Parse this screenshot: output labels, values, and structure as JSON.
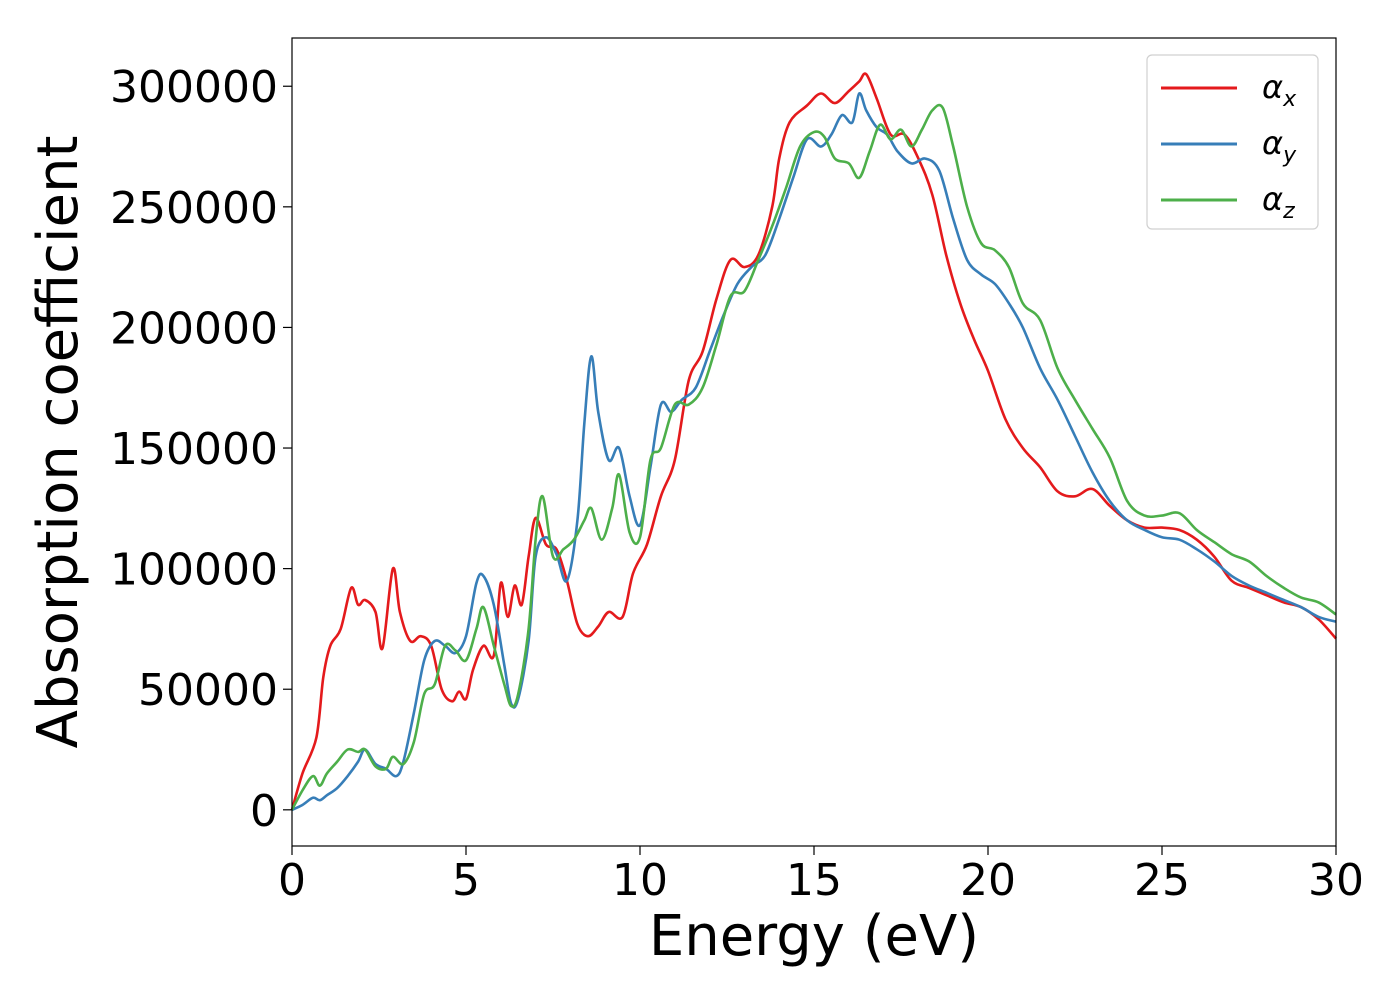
{
  "chart_data": {
    "type": "line",
    "title": "",
    "xlabel": "Energy (eV)",
    "ylabel": "Absorption coefficient",
    "xlim": [
      0,
      30
    ],
    "ylim": [
      -15000,
      320000
    ],
    "xticks": [
      "0",
      "5",
      "10",
      "15",
      "20",
      "25",
      "30"
    ],
    "yticks": [
      "0",
      "50000",
      "100000",
      "150000",
      "200000",
      "250000",
      "300000"
    ],
    "grid": false,
    "legend_position": "top-right",
    "series": [
      {
        "name": "αx",
        "symbol": "α",
        "subscript": "x",
        "color": "#e41a1c",
        "x": [
          0,
          0.3,
          0.7,
          0.9,
          1.1,
          1.4,
          1.7,
          1.9,
          2.1,
          2.4,
          2.6,
          2.9,
          3.1,
          3.4,
          3.7,
          4.0,
          4.3,
          4.6,
          4.8,
          5.0,
          5.2,
          5.5,
          5.8,
          6.0,
          6.2,
          6.4,
          6.6,
          6.8,
          7.0,
          7.3,
          7.6,
          7.9,
          8.2,
          8.5,
          8.8,
          9.1,
          9.5,
          9.8,
          10.2,
          10.6,
          11.0,
          11.4,
          11.8,
          12.2,
          12.6,
          13.0,
          13.4,
          13.8,
          14.0,
          14.3,
          14.8,
          15.2,
          15.6,
          16.0,
          16.3,
          16.5,
          16.8,
          17.2,
          17.6,
          18.0,
          18.4,
          18.8,
          19.2,
          19.6,
          20.0,
          20.5,
          21.0,
          21.5,
          22.0,
          22.5,
          23.0,
          23.5,
          24.0,
          24.5,
          25.0,
          25.5,
          26.0,
          26.5,
          27.0,
          27.5,
          28.0,
          28.5,
          29.0,
          29.5,
          30.0
        ],
        "y": [
          0,
          15000,
          30000,
          55000,
          68000,
          75000,
          92000,
          85000,
          87000,
          82000,
          67000,
          100000,
          82000,
          70000,
          72000,
          68000,
          50000,
          45000,
          49000,
          46000,
          58000,
          68000,
          64000,
          94000,
          80000,
          93000,
          85000,
          105000,
          121000,
          110000,
          108000,
          95000,
          77000,
          72000,
          76000,
          82000,
          80000,
          98000,
          110000,
          130000,
          145000,
          178000,
          190000,
          212000,
          228000,
          225000,
          230000,
          250000,
          270000,
          285000,
          292000,
          297000,
          293000,
          298000,
          302000,
          305000,
          295000,
          280000,
          280000,
          270000,
          255000,
          230000,
          210000,
          195000,
          182000,
          162000,
          150000,
          142000,
          132000,
          130000,
          133000,
          126000,
          120000,
          117000,
          117000,
          116000,
          112000,
          105000,
          95000,
          92000,
          89000,
          86000,
          84000,
          79000,
          71000
        ]
      },
      {
        "name": "αy",
        "symbol": "α",
        "subscript": "y",
        "color": "#377eb8",
        "x": [
          0,
          0.3,
          0.6,
          0.8,
          1.0,
          1.3,
          1.6,
          1.9,
          2.1,
          2.4,
          2.7,
          3.0,
          3.2,
          3.5,
          3.8,
          4.1,
          4.4,
          4.7,
          5.0,
          5.3,
          5.5,
          5.8,
          6.1,
          6.3,
          6.5,
          6.8,
          7.0,
          7.3,
          7.6,
          7.9,
          8.2,
          8.4,
          8.6,
          8.8,
          9.1,
          9.4,
          9.7,
          10.0,
          10.3,
          10.6,
          10.9,
          11.2,
          11.6,
          12.0,
          12.4,
          12.8,
          13.2,
          13.6,
          14.0,
          14.4,
          14.8,
          15.2,
          15.5,
          15.8,
          16.1,
          16.3,
          16.5,
          16.8,
          17.1,
          17.4,
          17.8,
          18.2,
          18.6,
          19.0,
          19.4,
          19.8,
          20.2,
          20.6,
          21.0,
          21.5,
          22.0,
          22.5,
          23.0,
          23.5,
          24.0,
          24.5,
          25.0,
          25.5,
          26.0,
          26.5,
          27.0,
          27.5,
          28.0,
          28.5,
          29.0,
          29.5,
          30.0
        ],
        "y": [
          0,
          2000,
          5000,
          4000,
          6000,
          9000,
          14000,
          20000,
          25000,
          19000,
          17000,
          14000,
          20000,
          40000,
          62000,
          70000,
          68000,
          65000,
          72000,
          94000,
          97000,
          85000,
          60000,
          44000,
          46000,
          70000,
          105000,
          113000,
          106000,
          95000,
          120000,
          160000,
          188000,
          165000,
          145000,
          150000,
          130000,
          118000,
          142000,
          168000,
          165000,
          170000,
          175000,
          190000,
          205000,
          218000,
          225000,
          230000,
          245000,
          262000,
          278000,
          275000,
          280000,
          288000,
          285000,
          297000,
          290000,
          283000,
          280000,
          273000,
          268000,
          270000,
          265000,
          245000,
          228000,
          222000,
          218000,
          210000,
          200000,
          183000,
          170000,
          155000,
          140000,
          128000,
          120000,
          116000,
          113000,
          112000,
          108000,
          103000,
          97000,
          93000,
          90000,
          87000,
          84000,
          80000,
          78000
        ]
      },
      {
        "name": "αz",
        "symbol": "α",
        "subscript": "z",
        "color": "#4daf4a",
        "x": [
          0,
          0.3,
          0.6,
          0.8,
          1.0,
          1.3,
          1.6,
          1.9,
          2.1,
          2.4,
          2.7,
          2.9,
          3.2,
          3.5,
          3.8,
          4.1,
          4.4,
          4.7,
          5.0,
          5.3,
          5.5,
          5.8,
          6.1,
          6.3,
          6.5,
          6.8,
          7.0,
          7.2,
          7.5,
          7.8,
          8.1,
          8.4,
          8.6,
          8.9,
          9.2,
          9.4,
          9.7,
          10.0,
          10.3,
          10.6,
          11.0,
          11.4,
          11.8,
          12.2,
          12.6,
          13.0,
          13.4,
          13.8,
          14.2,
          14.6,
          15.0,
          15.3,
          15.6,
          16.0,
          16.3,
          16.6,
          16.9,
          17.2,
          17.5,
          17.8,
          18.1,
          18.4,
          18.7,
          19.0,
          19.4,
          19.8,
          20.2,
          20.6,
          21.0,
          21.5,
          22.0,
          22.5,
          23.0,
          23.5,
          24.0,
          24.5,
          25.0,
          25.5,
          26.0,
          26.5,
          27.0,
          27.5,
          28.0,
          28.5,
          29.0,
          29.5,
          30.0
        ],
        "y": [
          0,
          8000,
          14000,
          10000,
          15000,
          20000,
          25000,
          24000,
          25000,
          18000,
          17000,
          22000,
          19000,
          28000,
          48000,
          52000,
          68000,
          66000,
          62000,
          75000,
          84000,
          68000,
          52000,
          43000,
          48000,
          75000,
          112000,
          130000,
          105000,
          108000,
          112000,
          120000,
          125000,
          112000,
          125000,
          139000,
          115000,
          113000,
          145000,
          150000,
          168000,
          168000,
          175000,
          193000,
          213000,
          215000,
          228000,
          242000,
          258000,
          275000,
          281000,
          279000,
          270000,
          268000,
          262000,
          273000,
          284000,
          278000,
          282000,
          275000,
          282000,
          290000,
          291000,
          275000,
          250000,
          235000,
          232000,
          225000,
          210000,
          203000,
          183000,
          170000,
          158000,
          146000,
          128000,
          122000,
          122000,
          123000,
          116000,
          111000,
          106000,
          103000,
          97000,
          92000,
          88000,
          86000,
          81000
        ]
      }
    ]
  }
}
